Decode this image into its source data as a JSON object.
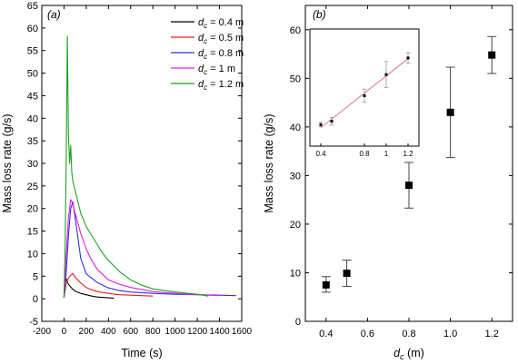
{
  "chart_data": [
    {
      "type": "line",
      "panel_label": "(a)",
      "xlabel": "Time (s)",
      "ylabel": "Mass loss rate (g/s)",
      "xlim": [
        -200,
        1600
      ],
      "ylim": [
        -5,
        65
      ],
      "xticks": [
        "-200",
        "0",
        "200",
        "400",
        "600",
        "800",
        "1000",
        "1200",
        "1400",
        "1600"
      ],
      "yticks": [
        "-5",
        "0",
        "5",
        "10",
        "15",
        "20",
        "25",
        "30",
        "35",
        "40",
        "45",
        "50",
        "55",
        "60",
        "65"
      ],
      "legend_position": "top-right",
      "series": [
        {
          "name": "d_c = 0.4 m",
          "legend_base": "d",
          "legend_sub": "c",
          "legend_rest": " = 0.4 m",
          "color": "#000000",
          "points": [
            [
              0,
              0.3
            ],
            [
              10,
              3.6
            ],
            [
              20,
              4.4
            ],
            [
              30,
              3.8
            ],
            [
              40,
              3.2
            ],
            [
              60,
              2.6
            ],
            [
              80,
              2.1
            ],
            [
              100,
              1.7
            ],
            [
              150,
              1.2
            ],
            [
              200,
              0.9
            ],
            [
              250,
              0.6
            ],
            [
              300,
              0.4
            ],
            [
              350,
              0.3
            ],
            [
              400,
              0.2
            ],
            [
              450,
              0.1
            ]
          ]
        },
        {
          "name": "d_c = 0.5 m",
          "legend_base": "d",
          "legend_sub": "c",
          "legend_rest": " = 0.5 m",
          "color": "#e02020",
          "points": [
            [
              0,
              0.3
            ],
            [
              20,
              3.4
            ],
            [
              40,
              4.6
            ],
            [
              60,
              5.2
            ],
            [
              80,
              5.6
            ],
            [
              100,
              4.8
            ],
            [
              150,
              3.5
            ],
            [
              200,
              2.5
            ],
            [
              250,
              2.0
            ],
            [
              300,
              1.6
            ],
            [
              400,
              1.2
            ],
            [
              500,
              0.9
            ],
            [
              600,
              0.8
            ],
            [
              700,
              0.7
            ],
            [
              800,
              0.6
            ]
          ]
        },
        {
          "name": "d_c = 0.8 m",
          "legend_base": "d",
          "legend_sub": "c",
          "legend_rest": " = 0.8 m",
          "color": "#3030e0",
          "points": [
            [
              0,
              0.3
            ],
            [
              20,
              6
            ],
            [
              40,
              14
            ],
            [
              60,
              20
            ],
            [
              80,
              21.5
            ],
            [
              100,
              18
            ],
            [
              150,
              9
            ],
            [
              200,
              5.5
            ],
            [
              300,
              3.6
            ],
            [
              400,
              2.4
            ],
            [
              500,
              1.8
            ],
            [
              600,
              1.5
            ],
            [
              800,
              1.2
            ],
            [
              1000,
              1.0
            ],
            [
              1200,
              0.9
            ],
            [
              1400,
              0.8
            ],
            [
              1550,
              0.7
            ]
          ]
        },
        {
          "name": "d_c = 1 m",
          "legend_base": "d",
          "legend_sub": "c",
          "legend_rest": " = 1 m",
          "color": "#e020e0",
          "points": [
            [
              0,
              0.4
            ],
            [
              20,
              10
            ],
            [
              40,
              18
            ],
            [
              60,
              22
            ],
            [
              80,
              21
            ],
            [
              100,
              19
            ],
            [
              150,
              14.5
            ],
            [
              200,
              11
            ],
            [
              250,
              8.5
            ],
            [
              300,
              6.5
            ],
            [
              400,
              4.2
            ],
            [
              500,
              3.2
            ],
            [
              600,
              2.5
            ],
            [
              800,
              1.6
            ],
            [
              1000,
              1.2
            ],
            [
              1200,
              0.9
            ],
            [
              1400,
              0.7
            ]
          ]
        },
        {
          "name": "d_c = 1.2 m",
          "legend_base": "d",
          "legend_sub": "c",
          "legend_rest": " = 1.2 m",
          "color": "#20a020",
          "points": [
            [
              0,
              0.5
            ],
            [
              10,
              12
            ],
            [
              20,
              32
            ],
            [
              30,
              58.2
            ],
            [
              40,
              36
            ],
            [
              50,
              30
            ],
            [
              60,
              34
            ],
            [
              70,
              28
            ],
            [
              80,
              26
            ],
            [
              100,
              24
            ],
            [
              120,
              22
            ],
            [
              150,
              19
            ],
            [
              200,
              16
            ],
            [
              250,
              14
            ],
            [
              300,
              12
            ],
            [
              350,
              10
            ],
            [
              400,
              8.5
            ],
            [
              500,
              6
            ],
            [
              600,
              4.2
            ],
            [
              700,
              3
            ],
            [
              800,
              2.2
            ],
            [
              1000,
              1.5
            ],
            [
              1200,
              1
            ],
            [
              1300,
              0.6
            ]
          ]
        }
      ]
    },
    {
      "type": "scatter",
      "panel_label": "(b)",
      "xlabel_base": "d",
      "xlabel_sub": "c",
      "xlabel_unit": " (m)",
      "ylabel": "Mass loss rate (g/s)",
      "xlim": [
        0.3,
        1.3
      ],
      "ylim": [
        0,
        65
      ],
      "xticks": [
        "0.4",
        "0.6",
        "0.8",
        "1.0",
        "1.2"
      ],
      "yticks": [
        "0",
        "10",
        "20",
        "30",
        "40",
        "50",
        "60"
      ],
      "points": [
        {
          "x": 0.4,
          "y": 7.5,
          "err_low": 1.5,
          "err_high": 1.7
        },
        {
          "x": 0.5,
          "y": 9.9,
          "err_low": 2.7,
          "err_high": 2.7
        },
        {
          "x": 0.8,
          "y": 28.0,
          "err_low": 4.7,
          "err_high": 4.7
        },
        {
          "x": 1.0,
          "y": 43.0,
          "err_low": 9.3,
          "err_high": 9.3
        },
        {
          "x": 1.2,
          "y": 54.8,
          "err_low": 3.8,
          "err_high": 3.8
        }
      ],
      "inset": {
        "type": "scatter",
        "fit_line": true,
        "xticks": [
          "0.4",
          "0.8",
          "1",
          "1.2"
        ],
        "xlim": [
          0.35,
          1.25
        ],
        "ylim": [
          0,
          65
        ]
      }
    }
  ]
}
